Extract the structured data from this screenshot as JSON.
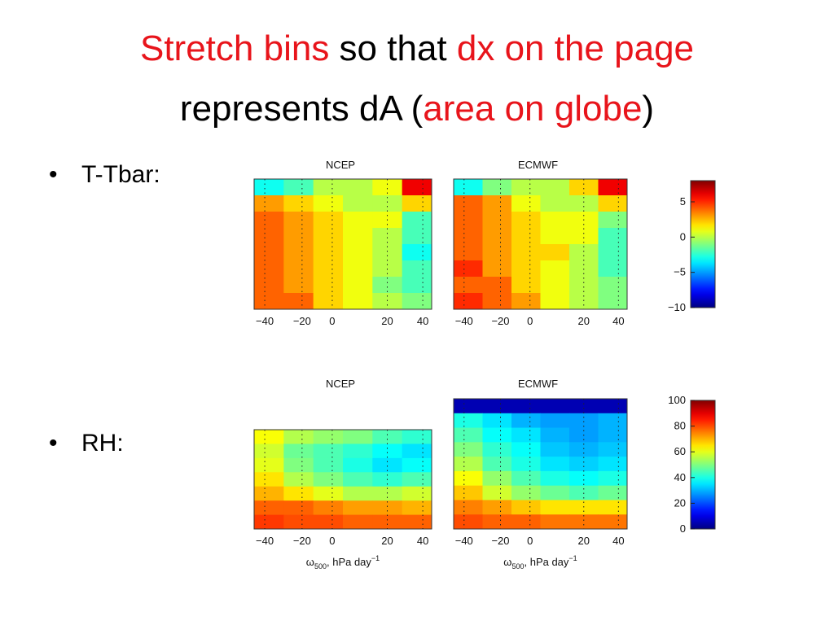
{
  "title": {
    "lines": [
      [
        {
          "text": "Stretch bins",
          "color": "#e8141b"
        },
        {
          "text": " so that ",
          "color": "#000000"
        },
        {
          "text": "dx on the page",
          "color": "#e8141b"
        }
      ],
      [
        {
          "text": "represents dA (",
          "color": "#000000"
        },
        {
          "text": "area on globe",
          "color": "#e8141b"
        },
        {
          "text": ")",
          "color": "#000000"
        }
      ]
    ]
  },
  "bullets": [
    "T-Tbar:",
    "RH:"
  ],
  "figures": [
    {
      "colormap": "jet",
      "clim": [
        -10,
        8
      ],
      "cticks": [
        {
          "value": 5,
          "label": "5"
        },
        {
          "value": 0,
          "label": "0"
        },
        {
          "value": -5,
          "label": "−5"
        },
        {
          "value": -10,
          "label": "−10"
        }
      ],
      "xticks": [
        {
          "value": -40,
          "label": "−40"
        },
        {
          "value": -20,
          "label": "−20"
        },
        {
          "value": 0,
          "label": "0"
        },
        {
          "value": 20,
          "label": "20"
        },
        {
          "value": 40,
          "label": "40"
        }
      ],
      "panels": [
        {
          "title": "NCEP",
          "values": [
            [
              -3,
              -2,
              0,
              0,
              1,
              6
            ],
            [
              3,
              2,
              1,
              0,
              0,
              2
            ],
            [
              4,
              3,
              2,
              1,
              1,
              -2
            ],
            [
              4,
              3,
              2,
              1,
              0,
              -2
            ],
            [
              4,
              3,
              2,
              1,
              0,
              -3
            ],
            [
              4,
              3,
              2,
              1,
              0,
              -2
            ],
            [
              4,
              3,
              2,
              1,
              -1,
              -2
            ],
            [
              4,
              4,
              2,
              1,
              0,
              -1
            ]
          ]
        },
        {
          "title": "ECMWF",
          "values": [
            [
              -3,
              -1,
              0,
              0,
              2,
              6
            ],
            [
              4,
              3,
              1,
              0,
              0,
              2
            ],
            [
              4,
              3,
              2,
              1,
              1,
              -1
            ],
            [
              4,
              3,
              2,
              1,
              1,
              -2
            ],
            [
              4,
              3,
              2,
              2,
              0,
              -2
            ],
            [
              5,
              3,
              2,
              1,
              0,
              -2
            ],
            [
              4,
              4,
              2,
              1,
              0,
              -1
            ],
            [
              5,
              4,
              3,
              1,
              0,
              -1
            ]
          ]
        }
      ]
    },
    {
      "colormap": "jet",
      "clim": [
        0,
        100
      ],
      "cticks": [
        100,
        80,
        60,
        40,
        20,
        0
      ],
      "xticks": [
        {
          "value": -40,
          "label": "−40"
        },
        {
          "value": -20,
          "label": "−20"
        },
        {
          "value": 0,
          "label": "0"
        },
        {
          "value": 20,
          "label": "20"
        },
        {
          "value": 40,
          "label": "40"
        }
      ],
      "xlabel": {
        "base": "ω",
        "sub": "500",
        "mid": ", hPa day",
        "sup": "−1"
      },
      "panels": [
        {
          "title": "NCEP",
          "values": [
            [
              62,
              55,
              52,
              50,
              45,
              42
            ],
            [
              58,
              48,
              45,
              42,
              38,
              35
            ],
            [
              60,
              50,
              45,
              40,
              35,
              38
            ],
            [
              65,
              55,
              50,
              45,
              42,
              45
            ],
            [
              70,
              65,
              60,
              55,
              55,
              58
            ],
            [
              78,
              78,
              75,
              72,
              72,
              70
            ],
            [
              82,
              80,
              80,
              78,
              78,
              78
            ]
          ]
        },
        {
          "title": "ECMWF",
          "values": [
            [
              5,
              5,
              5,
              5,
              5,
              5
            ],
            [
              40,
              35,
              30,
              28,
              28,
              30
            ],
            [
              45,
              38,
              35,
              30,
              28,
              30
            ],
            [
              50,
              42,
              38,
              32,
              30,
              32
            ],
            [
              55,
              45,
              40,
              35,
              33,
              35
            ],
            [
              62,
              52,
              45,
              40,
              38,
              40
            ],
            [
              68,
              58,
              52,
              48,
              45,
              48
            ],
            [
              75,
              72,
              68,
              65,
              65,
              65
            ],
            [
              80,
              78,
              78,
              76,
              76,
              76
            ]
          ]
        }
      ]
    }
  ]
}
